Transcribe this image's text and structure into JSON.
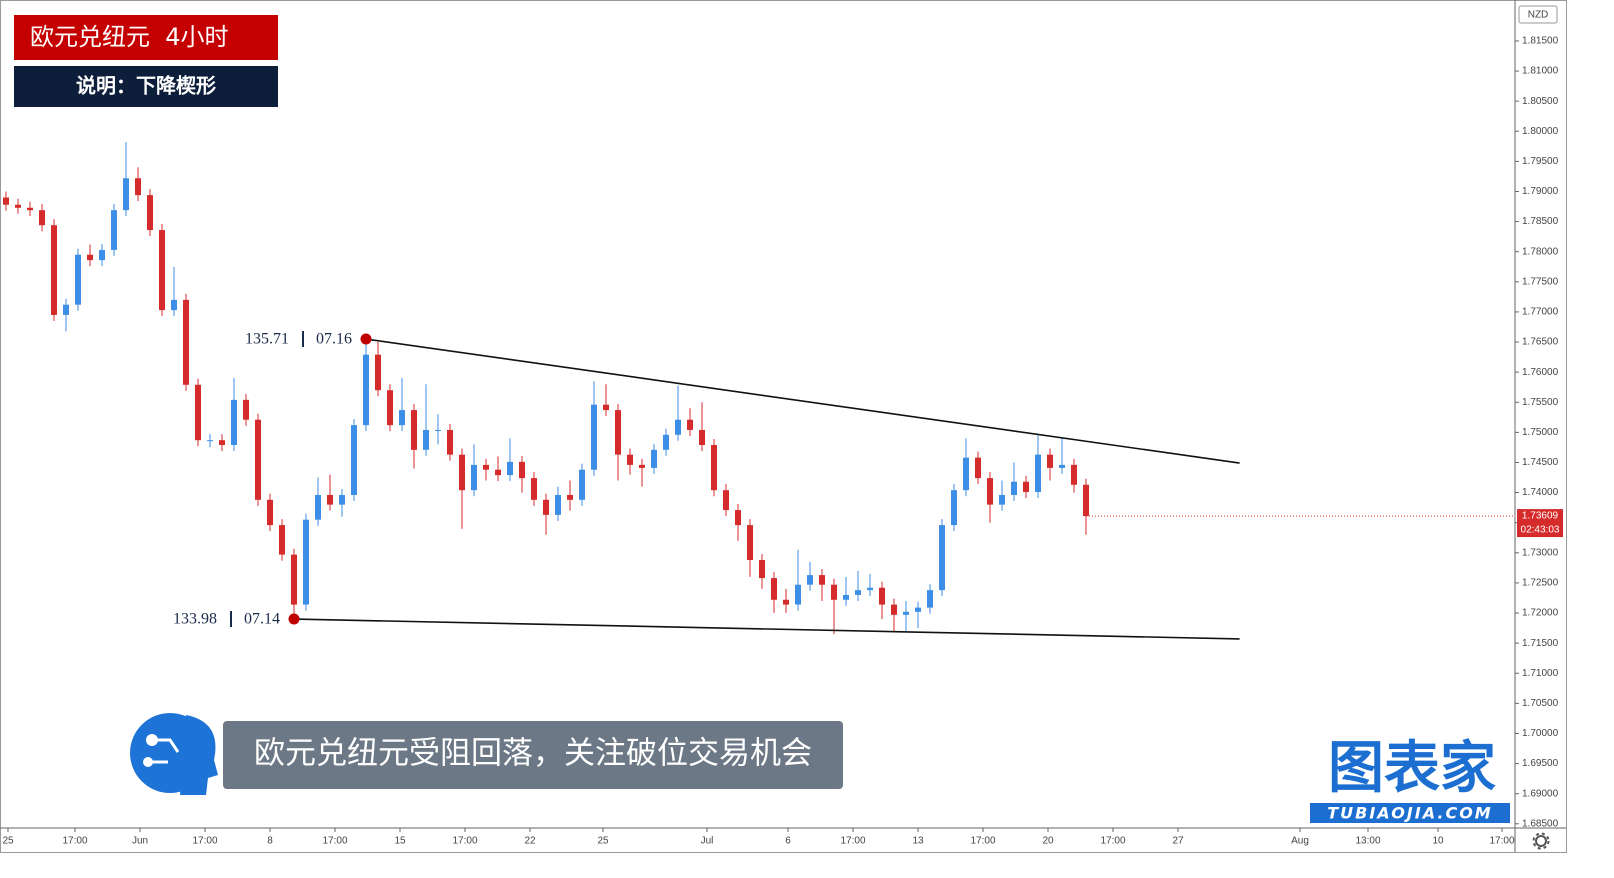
{
  "chart_data": {
    "type": "candlestick",
    "title": "欧元兑纽元  4小时",
    "subtitle": "说明：下降楔形",
    "caption": "欧元兑纽元受阻回落，关注破位交易机会",
    "logo_text": "图表家",
    "logo_url": "TUBIAOJIA.COM",
    "currency": "NZD",
    "price_label": "1.73609",
    "countdown": "02:43:03",
    "up_color": "#3d8ee6",
    "down_color": "#d52b2b",
    "xlim": [
      -0.5,
      125.75
    ],
    "ylim": [
      1.6843,
      1.8218
    ],
    "open": [
      1.789,
      1.7878,
      1.7873,
      1.7869,
      1.7844,
      1.7695,
      1.7712,
      1.7795,
      1.7786,
      1.7803,
      1.7869,
      1.7922,
      1.7894,
      1.7836,
      1.7703,
      1.772,
      1.7579,
      1.7487,
      1.7487,
      1.7479,
      1.7554,
      1.7521,
      1.7388,
      1.7346,
      1.7297,
      1.7214,
      1.7355,
      1.7396,
      1.738,
      1.7396,
      1.7512,
      1.7629,
      1.757,
      1.7512,
      1.7537,
      1.7471,
      1.7504,
      1.7504,
      1.7463,
      1.7404,
      1.7446,
      1.7438,
      1.7429,
      1.7451,
      1.7424,
      1.7388,
      1.7363,
      1.7396,
      1.7388,
      1.7438,
      1.7546,
      1.7537,
      1.7463,
      1.7446,
      1.7441,
      1.7471,
      1.7496,
      1.7521,
      1.7504,
      1.7479,
      1.7404,
      1.7371,
      1.7346,
      1.7288,
      1.7258,
      1.7222,
      1.7214,
      1.7247,
      1.7263,
      1.7247,
      1.7222,
      1.723,
      1.7238,
      1.7242,
      1.7214,
      1.7197,
      1.7202,
      1.7209,
      1.7238,
      1.7346,
      1.7404,
      1.7458,
      1.7424,
      1.738,
      1.7396,
      1.7418,
      1.7401,
      1.7463,
      1.7441,
      1.7446,
      1.7413
    ],
    "high": [
      1.79,
      1.7888,
      1.7883,
      1.7879,
      1.7854,
      1.7722,
      1.7805,
      1.7812,
      1.7813,
      1.7879,
      1.7982,
      1.794,
      1.7904,
      1.7846,
      1.7775,
      1.773,
      1.7589,
      1.7497,
      1.7497,
      1.759,
      1.7564,
      1.7531,
      1.7398,
      1.7356,
      1.7307,
      1.7365,
      1.7425,
      1.743,
      1.7406,
      1.7522,
      1.7655,
      1.765,
      1.758,
      1.759,
      1.7547,
      1.758,
      1.753,
      1.7514,
      1.7473,
      1.748,
      1.7456,
      1.746,
      1.749,
      1.7461,
      1.7434,
      1.7398,
      1.741,
      1.742,
      1.7448,
      1.7585,
      1.758,
      1.7547,
      1.7473,
      1.7456,
      1.7481,
      1.7506,
      1.7578,
      1.754,
      1.755,
      1.7489,
      1.7414,
      1.7381,
      1.7356,
      1.7298,
      1.7268,
      1.724,
      1.7305,
      1.7285,
      1.7273,
      1.7257,
      1.726,
      1.727,
      1.7265,
      1.7252,
      1.7224,
      1.722,
      1.7219,
      1.7248,
      1.7356,
      1.7414,
      1.749,
      1.7468,
      1.7434,
      1.742,
      1.745,
      1.7428,
      1.7495,
      1.7473,
      1.749,
      1.7456,
      1.7423
    ],
    "low": [
      1.7868,
      1.7863,
      1.7859,
      1.7834,
      1.7685,
      1.7668,
      1.7702,
      1.7776,
      1.7776,
      1.7793,
      1.7859,
      1.7884,
      1.7826,
      1.7693,
      1.7693,
      1.7569,
      1.7477,
      1.7475,
      1.7469,
      1.7469,
      1.7511,
      1.7378,
      1.7336,
      1.7287,
      1.719,
      1.7204,
      1.7345,
      1.737,
      1.736,
      1.7386,
      1.7502,
      1.756,
      1.7502,
      1.7502,
      1.744,
      1.7461,
      1.748,
      1.7453,
      1.734,
      1.7394,
      1.742,
      1.7419,
      1.7419,
      1.74,
      1.7378,
      1.733,
      1.7353,
      1.737,
      1.7378,
      1.7428,
      1.7527,
      1.742,
      1.743,
      1.741,
      1.7431,
      1.7461,
      1.7486,
      1.7494,
      1.7469,
      1.7394,
      1.7361,
      1.732,
      1.726,
      1.724,
      1.72,
      1.72,
      1.7204,
      1.7237,
      1.722,
      1.7165,
      1.7212,
      1.722,
      1.7228,
      1.719,
      1.717,
      1.717,
      1.7175,
      1.7199,
      1.7228,
      1.7336,
      1.7394,
      1.7414,
      1.735,
      1.737,
      1.7386,
      1.7391,
      1.7391,
      1.742,
      1.7431,
      1.74,
      1.733
    ],
    "close": [
      1.7878,
      1.7873,
      1.7869,
      1.7844,
      1.7695,
      1.7712,
      1.7795,
      1.7786,
      1.7803,
      1.7869,
      1.7922,
      1.7894,
      1.7836,
      1.7703,
      1.772,
      1.7579,
      1.7487,
      1.7487,
      1.7479,
      1.7554,
      1.7521,
      1.7388,
      1.7346,
      1.7297,
      1.7214,
      1.7355,
      1.7396,
      1.738,
      1.7396,
      1.7512,
      1.7629,
      1.757,
      1.7512,
      1.7537,
      1.7471,
      1.7504,
      1.7504,
      1.7463,
      1.7404,
      1.7446,
      1.7438,
      1.7429,
      1.7451,
      1.7424,
      1.7388,
      1.7363,
      1.7396,
      1.7388,
      1.7438,
      1.7546,
      1.7537,
      1.7463,
      1.7446,
      1.7441,
      1.7471,
      1.7496,
      1.7521,
      1.7504,
      1.7479,
      1.7404,
      1.7371,
      1.7346,
      1.7288,
      1.7258,
      1.7222,
      1.7214,
      1.7247,
      1.7263,
      1.7247,
      1.7222,
      1.723,
      1.7238,
      1.7242,
      1.7214,
      1.7197,
      1.7202,
      1.7209,
      1.7238,
      1.7346,
      1.7404,
      1.7458,
      1.7424,
      1.738,
      1.7396,
      1.7418,
      1.7401,
      1.7463,
      1.7441,
      1.7446,
      1.7413,
      1.7361
    ],
    "trendlines": [
      {
        "x": [
          30,
          102.8
        ],
        "y": [
          1.7655,
          1.7449
        ],
        "label": "135.71",
        "date": "07.16"
      },
      {
        "x": [
          24,
          102.8
        ],
        "y": [
          1.719,
          1.7157
        ],
        "label": "133.98",
        "date": "07.14"
      }
    ],
    "yticks": [
      {
        "value": 1.685,
        "label": "1.68500"
      },
      {
        "value": 1.69,
        "label": "1.69000"
      },
      {
        "value": 1.695,
        "label": "1.69500"
      },
      {
        "value": 1.7,
        "label": "1.70000"
      },
      {
        "value": 1.705,
        "label": "1.70500"
      },
      {
        "value": 1.71,
        "label": "1.71000"
      },
      {
        "value": 1.715,
        "label": "1.71500"
      },
      {
        "value": 1.72,
        "label": "1.72000"
      },
      {
        "value": 1.725,
        "label": "1.72500"
      },
      {
        "value": 1.73,
        "label": "1.73000"
      },
      {
        "value": 1.735,
        "label": "1.73500"
      },
      {
        "value": 1.74,
        "label": "1.74000"
      },
      {
        "value": 1.745,
        "label": "1.74500"
      },
      {
        "value": 1.75,
        "label": "1.75000"
      },
      {
        "value": 1.755,
        "label": "1.75500"
      },
      {
        "value": 1.76,
        "label": "1.76000"
      },
      {
        "value": 1.765,
        "label": "1.76500"
      },
      {
        "value": 1.77,
        "label": "1.77000"
      },
      {
        "value": 1.775,
        "label": "1.77500"
      },
      {
        "value": 1.78,
        "label": "1.78000"
      },
      {
        "value": 1.785,
        "label": "1.78500"
      },
      {
        "value": 1.79,
        "label": "1.79000"
      },
      {
        "value": 1.795,
        "label": "1.79500"
      },
      {
        "value": 1.8,
        "label": "1.80000"
      },
      {
        "value": 1.805,
        "label": "1.80500"
      },
      {
        "value": 1.81,
        "label": "1.81000"
      },
      {
        "value": 1.815,
        "label": "1.81500"
      }
    ],
    "xtick_labels": [
      "25",
      "17:00",
      "Jun",
      "17:00",
      "8",
      "17:00",
      "15",
      "17:00",
      "22",
      "25",
      "Jul",
      "6",
      "17:00",
      "13",
      "17:00",
      "20",
      "17:00",
      "27",
      "Aug",
      "13:00",
      "10",
      "17:00"
    ]
  }
}
